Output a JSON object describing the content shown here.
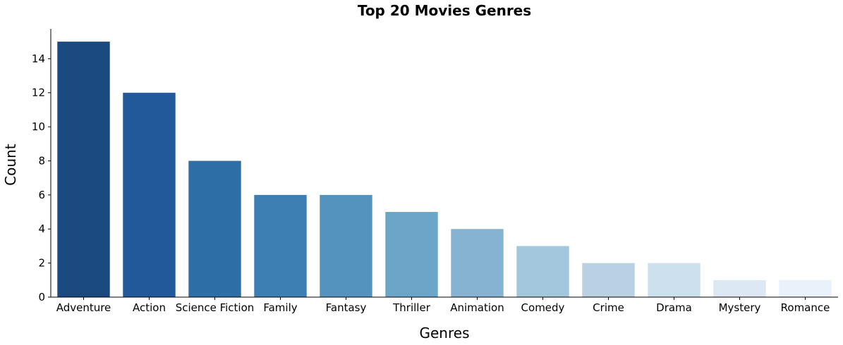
{
  "chart_data": {
    "type": "bar",
    "title": "Top 20 Movies Genres",
    "xlabel": "Genres",
    "ylabel": "Count",
    "categories": [
      "Adventure",
      "Action",
      "Science Fiction",
      "Family",
      "Fantasy",
      "Thriller",
      "Animation",
      "Comedy",
      "Crime",
      "Drama",
      "Mystery",
      "Romance"
    ],
    "values": [
      15,
      12,
      8,
      6,
      6,
      5,
      4,
      3,
      2,
      2,
      1,
      1
    ],
    "ylim": [
      0,
      15.75
    ],
    "yticks": [
      0,
      2,
      4,
      6,
      8,
      10,
      12,
      14
    ],
    "grid": false,
    "legend": "none",
    "colors": [
      "#1a4a7f",
      "#22599a",
      "#2e6ea6",
      "#3e7fb3",
      "#5593bf",
      "#6ba5c8",
      "#86b3d1",
      "#a3c8de",
      "#b9d1e3",
      "#cde0ee",
      "#dce8f4",
      "#e9f1fa"
    ]
  }
}
